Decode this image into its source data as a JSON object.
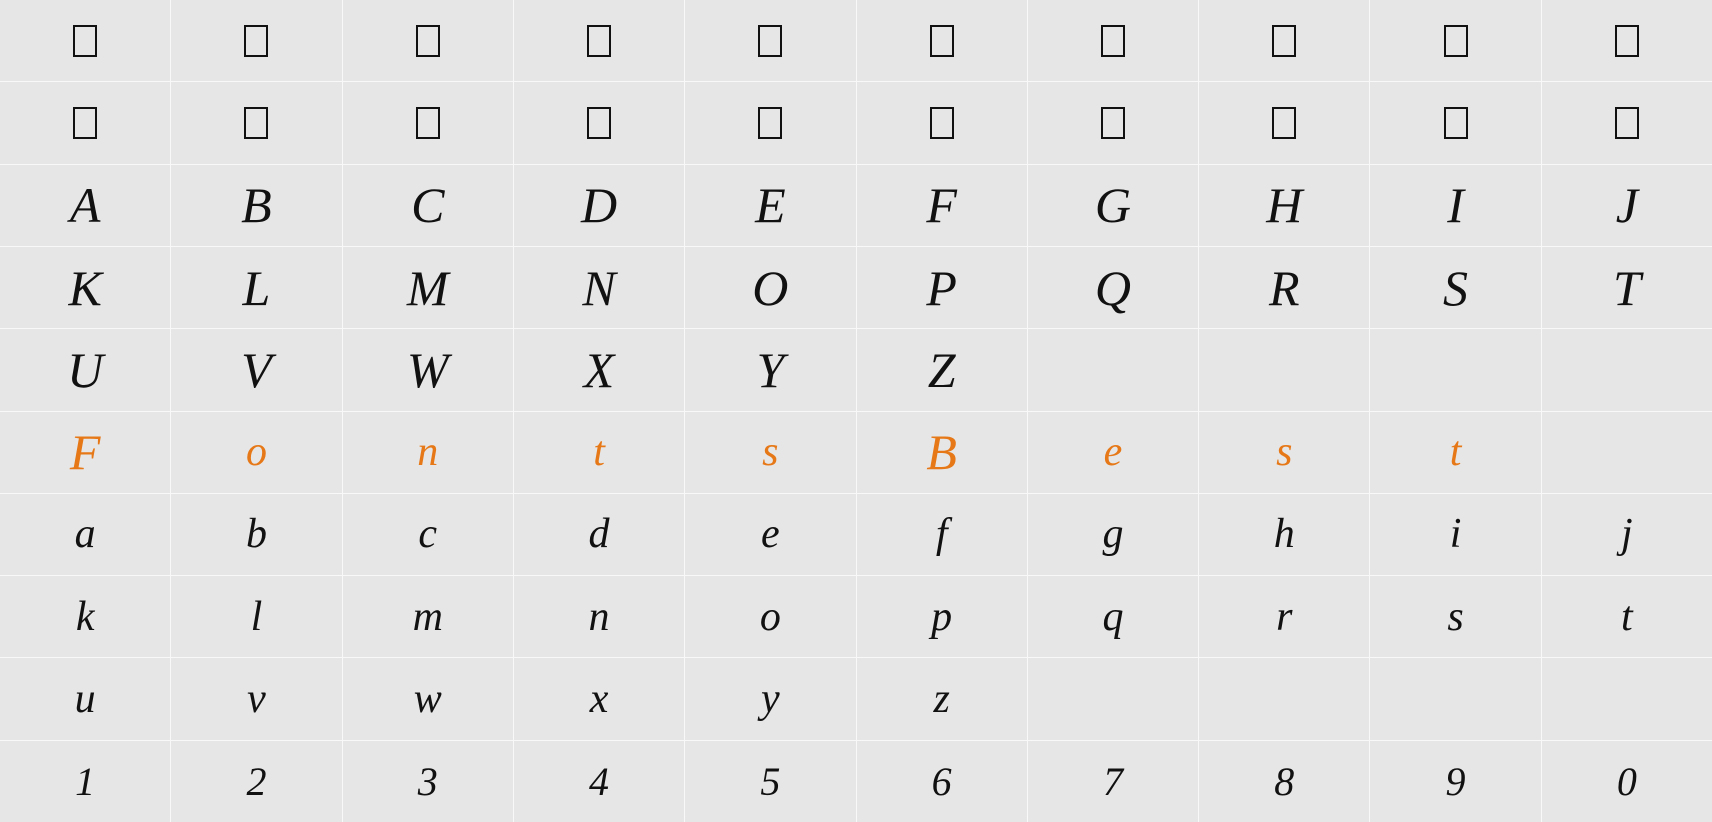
{
  "layout": {
    "columns": 10,
    "rows": 10,
    "cell_background": "#e6e6e6",
    "gap_color": "#f8f8f8",
    "page_background": "#e8e8e8",
    "highlight_color": "#e67817",
    "glyph_color": "#111111",
    "tofu_border_color": "#111111"
  },
  "rows": [
    {
      "type": "tofu",
      "cells": [
        "□",
        "□",
        "□",
        "□",
        "□",
        "□",
        "□",
        "□",
        "□",
        "□"
      ]
    },
    {
      "type": "tofu",
      "cells": [
        "□",
        "□",
        "□",
        "□",
        "□",
        "□",
        "□",
        "□",
        "□",
        "□"
      ]
    },
    {
      "type": "upper",
      "cells": [
        "A",
        "B",
        "C",
        "D",
        "E",
        "F",
        "G",
        "H",
        "I",
        "J"
      ]
    },
    {
      "type": "upper",
      "cells": [
        "K",
        "L",
        "M",
        "N",
        "O",
        "P",
        "Q",
        "R",
        "S",
        "T"
      ]
    },
    {
      "type": "upper",
      "cells": [
        "U",
        "V",
        "W",
        "X",
        "Y",
        "Z",
        "",
        "",
        "",
        ""
      ]
    },
    {
      "type": "highlight",
      "cells": [
        "F",
        "o",
        "n",
        "t",
        "s",
        "B",
        "e",
        "s",
        "t",
        ""
      ]
    },
    {
      "type": "lower",
      "cells": [
        "a",
        "b",
        "c",
        "d",
        "e",
        "f",
        "g",
        "h",
        "i",
        "j"
      ]
    },
    {
      "type": "lower",
      "cells": [
        "k",
        "l",
        "m",
        "n",
        "o",
        "p",
        "q",
        "r",
        "s",
        "t"
      ]
    },
    {
      "type": "lower",
      "cells": [
        "u",
        "v",
        "w",
        "x",
        "y",
        "z",
        "",
        "",
        "",
        ""
      ]
    },
    {
      "type": "digit",
      "cells": [
        "1",
        "2",
        "3",
        "4",
        "5",
        "6",
        "7",
        "8",
        "9",
        "0"
      ]
    }
  ]
}
